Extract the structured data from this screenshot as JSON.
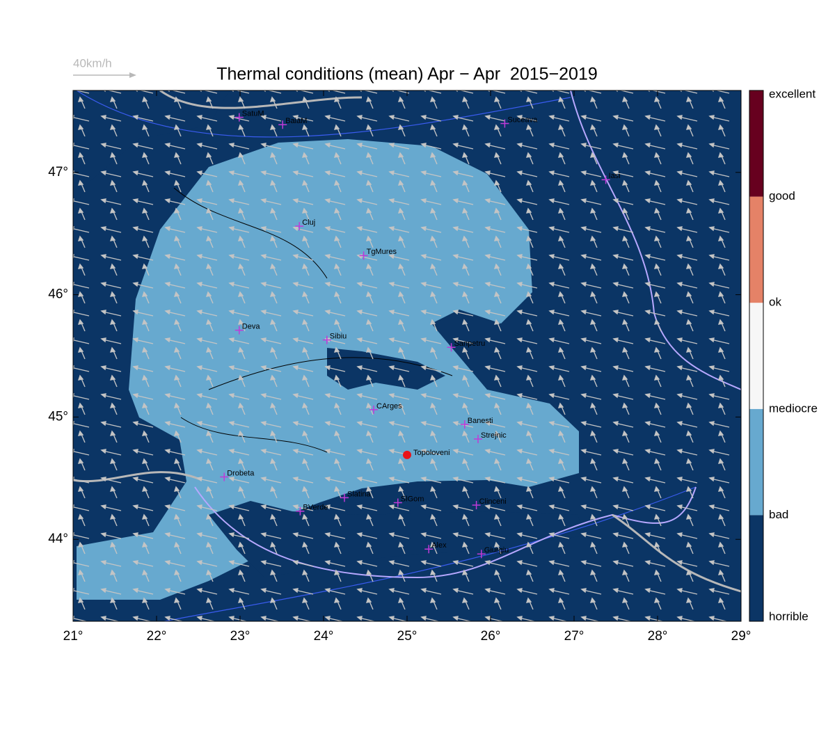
{
  "map": {
    "title": "Thermal conditions (mean) Apr − Apr  2015−2019",
    "wind_scale_label": "40km/h",
    "lonlim": [
      21,
      29
    ],
    "latlim": [
      43.33,
      47.67
    ],
    "xticks": [
      {
        "value": 21,
        "label": "21°"
      },
      {
        "value": 22,
        "label": "22°"
      },
      {
        "value": 23,
        "label": "23°"
      },
      {
        "value": 24,
        "label": "24°"
      },
      {
        "value": 25,
        "label": "25°"
      },
      {
        "value": 26,
        "label": "26°"
      },
      {
        "value": 27,
        "label": "27°"
      },
      {
        "value": 28,
        "label": "28°"
      },
      {
        "value": 29,
        "label": "29°"
      }
    ],
    "yticks": [
      {
        "value": 44,
        "label": "44°"
      },
      {
        "value": 45,
        "label": "45°"
      },
      {
        "value": 46,
        "label": "46°"
      },
      {
        "value": 47,
        "label": "47°"
      }
    ],
    "cities": [
      {
        "name": "SatuM",
        "lon": 22.99,
        "lat": 47.45
      },
      {
        "name": "BaiaM",
        "lon": 23.51,
        "lat": 47.39
      },
      {
        "name": "Suceava",
        "lon": 26.17,
        "lat": 47.4
      },
      {
        "name": "Iasi",
        "lon": 27.38,
        "lat": 46.94
      },
      {
        "name": "Cluj",
        "lon": 23.71,
        "lat": 46.56
      },
      {
        "name": "TgMures",
        "lon": 24.48,
        "lat": 46.32
      },
      {
        "name": "Deva",
        "lon": 22.99,
        "lat": 45.71
      },
      {
        "name": "Sibiu",
        "lon": 24.04,
        "lat": 45.63
      },
      {
        "name": "Sanpetru",
        "lon": 25.53,
        "lat": 45.57
      },
      {
        "name": "CArges",
        "lon": 24.6,
        "lat": 45.06
      },
      {
        "name": "Banesti",
        "lon": 25.69,
        "lat": 44.94
      },
      {
        "name": "Strejnic",
        "lon": 25.85,
        "lat": 44.82
      },
      {
        "name": "Drobeta",
        "lon": 22.81,
        "lat": 44.51
      },
      {
        "name": "Slatina",
        "lon": 24.25,
        "lat": 44.34
      },
      {
        "name": "SlGom",
        "lon": 24.89,
        "lat": 44.3
      },
      {
        "name": "Clinceni",
        "lon": 25.83,
        "lat": 44.28
      },
      {
        "name": "BVerde",
        "lon": 23.72,
        "lat": 44.23
      },
      {
        "name": "Alex",
        "lon": 25.26,
        "lat": 43.92
      },
      {
        "name": "Giurgiu",
        "lon": 25.89,
        "lat": 43.88
      }
    ],
    "highlight": {
      "name": "Topoloveni",
      "lon": 25.0,
      "lat": 44.69,
      "color": "#e8141a"
    },
    "city_color": "#c03ad8",
    "colorbar": {
      "labels": [
        "horrible",
        "bad",
        "mediocre",
        "ok",
        "good",
        "excellent"
      ],
      "colors": [
        "#0b3565",
        "#67a9cf",
        "#f7f7f7",
        "#e58267",
        "#67001f"
      ]
    }
  }
}
